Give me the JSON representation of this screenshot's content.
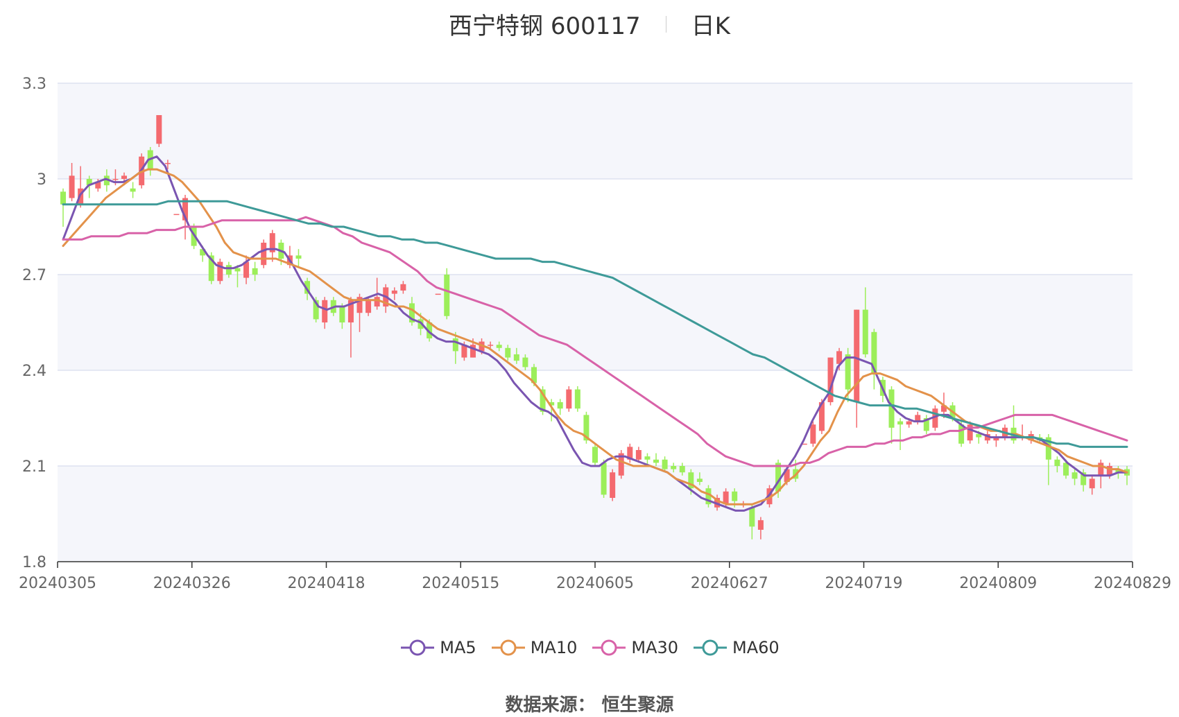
{
  "title": {
    "stock_name": "西宁特钢 600117",
    "period": "日K"
  },
  "source": "数据来源： 恒生聚源",
  "colors": {
    "up": "#f46a6f",
    "down": "#9cee5a",
    "ma5": "#7a55b1",
    "ma10": "#e3924a",
    "ma30": "#d862a8",
    "ma60": "#3e9a98",
    "band": "#f5f6fb",
    "grid": "#dde2f0"
  },
  "chart_data": {
    "type": "candlestick",
    "title": "西宁特钢 600117 日K",
    "y_ticks": [
      "3.3",
      "3",
      "2.7",
      "2.4",
      "2.1",
      "1.8"
    ],
    "ylim": [
      1.8,
      3.3
    ],
    "x_ticks": [
      "20240305",
      "20240326",
      "20240418",
      "20240515",
      "20240605",
      "20240627",
      "20240719",
      "20240809",
      "20240829"
    ],
    "legend": [
      "MA5",
      "MA10",
      "MA30",
      "MA60"
    ],
    "legend_position": "bottom",
    "grid": true,
    "candles": [
      {
        "o": 2.96,
        "c": 2.92,
        "h": 2.97,
        "l": 2.85
      },
      {
        "o": 2.94,
        "c": 3.01,
        "h": 3.05,
        "l": 2.93
      },
      {
        "o": 2.92,
        "c": 2.97,
        "h": 3.04,
        "l": 2.91
      },
      {
        "o": 3.0,
        "c": 2.98,
        "h": 3.01,
        "l": 2.94
      },
      {
        "o": 2.97,
        "c": 2.99,
        "h": 3.0,
        "l": 2.96
      },
      {
        "o": 3.01,
        "c": 2.98,
        "h": 3.03,
        "l": 2.96
      },
      {
        "o": 3.0,
        "c": 3.0,
        "h": 3.03,
        "l": 2.98
      },
      {
        "o": 3.0,
        "c": 3.01,
        "h": 3.02,
        "l": 2.98
      },
      {
        "o": 2.97,
        "c": 2.96,
        "h": 2.99,
        "l": 2.94
      },
      {
        "o": 2.98,
        "c": 3.07,
        "h": 3.08,
        "l": 2.97
      },
      {
        "o": 3.09,
        "c": 3.03,
        "h": 3.1,
        "l": 3.01
      },
      {
        "o": 3.11,
        "c": 3.2,
        "h": 3.2,
        "l": 3.1
      },
      {
        "o": 3.05,
        "c": 3.05,
        "h": 3.06,
        "l": 3.03
      },
      {
        "o": 2.89,
        "c": 2.89,
        "h": 2.89,
        "l": 2.89
      },
      {
        "o": 2.87,
        "c": 2.94,
        "h": 2.95,
        "l": 2.81
      },
      {
        "o": 2.85,
        "c": 2.79,
        "h": 2.86,
        "l": 2.78
      },
      {
        "o": 2.78,
        "c": 2.76,
        "h": 2.79,
        "l": 2.74
      },
      {
        "o": 2.76,
        "c": 2.68,
        "h": 2.77,
        "l": 2.67
      },
      {
        "o": 2.68,
        "c": 2.74,
        "h": 2.75,
        "l": 2.67
      },
      {
        "o": 2.73,
        "c": 2.7,
        "h": 2.74,
        "l": 2.69
      },
      {
        "o": 2.72,
        "c": 2.71,
        "h": 2.73,
        "l": 2.66
      },
      {
        "o": 2.69,
        "c": 2.74,
        "h": 2.76,
        "l": 2.67
      },
      {
        "o": 2.72,
        "c": 2.7,
        "h": 2.74,
        "l": 2.68
      },
      {
        "o": 2.73,
        "c": 2.8,
        "h": 2.81,
        "l": 2.72
      },
      {
        "o": 2.77,
        "c": 2.83,
        "h": 2.84,
        "l": 2.74
      },
      {
        "o": 2.8,
        "c": 2.75,
        "h": 2.81,
        "l": 2.73
      },
      {
        "o": 2.73,
        "c": 2.76,
        "h": 2.79,
        "l": 2.72
      },
      {
        "o": 2.76,
        "c": 2.75,
        "h": 2.78,
        "l": 2.72
      },
      {
        "o": 2.68,
        "c": 2.64,
        "h": 2.69,
        "l": 2.62
      },
      {
        "o": 2.62,
        "c": 2.56,
        "h": 2.63,
        "l": 2.55
      },
      {
        "o": 2.55,
        "c": 2.62,
        "h": 2.63,
        "l": 2.53
      },
      {
        "o": 2.62,
        "c": 2.58,
        "h": 2.63,
        "l": 2.57
      },
      {
        "o": 2.6,
        "c": 2.55,
        "h": 2.61,
        "l": 2.53
      },
      {
        "o": 2.55,
        "c": 2.62,
        "h": 2.63,
        "l": 2.44
      },
      {
        "o": 2.58,
        "c": 2.63,
        "h": 2.64,
        "l": 2.52
      },
      {
        "o": 2.58,
        "c": 2.62,
        "h": 2.63,
        "l": 2.57
      },
      {
        "o": 2.6,
        "c": 2.63,
        "h": 2.69,
        "l": 2.59
      },
      {
        "o": 2.6,
        "c": 2.66,
        "h": 2.67,
        "l": 2.58
      },
      {
        "o": 2.64,
        "c": 2.65,
        "h": 2.66,
        "l": 2.62
      },
      {
        "o": 2.65,
        "c": 2.67,
        "h": 2.68,
        "l": 2.64
      },
      {
        "o": 2.61,
        "c": 2.55,
        "h": 2.63,
        "l": 2.54
      },
      {
        "o": 2.56,
        "c": 2.53,
        "h": 2.58,
        "l": 2.51
      },
      {
        "o": 2.55,
        "c": 2.5,
        "h": 2.56,
        "l": 2.49
      },
      {
        "o": 2.64,
        "c": 2.64,
        "h": 2.64,
        "l": 2.64
      },
      {
        "o": 2.7,
        "c": 2.57,
        "h": 2.72,
        "l": 2.56
      },
      {
        "o": 2.5,
        "c": 2.46,
        "h": 2.52,
        "l": 2.42
      },
      {
        "o": 2.44,
        "c": 2.48,
        "h": 2.49,
        "l": 2.43
      },
      {
        "o": 2.44,
        "c": 2.48,
        "h": 2.5,
        "l": 2.44
      },
      {
        "o": 2.46,
        "c": 2.49,
        "h": 2.5,
        "l": 2.45
      },
      {
        "o": 2.48,
        "c": 2.48,
        "h": 2.49,
        "l": 2.47
      },
      {
        "o": 2.48,
        "c": 2.47,
        "h": 2.49,
        "l": 2.46
      },
      {
        "o": 2.47,
        "c": 2.44,
        "h": 2.48,
        "l": 2.43
      },
      {
        "o": 2.45,
        "c": 2.43,
        "h": 2.47,
        "l": 2.42
      },
      {
        "o": 2.44,
        "c": 2.41,
        "h": 2.45,
        "l": 2.4
      },
      {
        "o": 2.41,
        "c": 2.36,
        "h": 2.42,
        "l": 2.35
      },
      {
        "o": 2.34,
        "c": 2.27,
        "h": 2.35,
        "l": 2.26
      },
      {
        "o": 2.3,
        "c": 2.29,
        "h": 2.31,
        "l": 2.24
      },
      {
        "o": 2.3,
        "c": 2.28,
        "h": 2.31,
        "l": 2.26
      },
      {
        "o": 2.28,
        "c": 2.34,
        "h": 2.35,
        "l": 2.27
      },
      {
        "o": 2.34,
        "c": 2.28,
        "h": 2.35,
        "l": 2.27
      },
      {
        "o": 2.26,
        "c": 2.18,
        "h": 2.27,
        "l": 2.17
      },
      {
        "o": 2.16,
        "c": 2.11,
        "h": 2.17,
        "l": 2.1
      },
      {
        "o": 2.11,
        "c": 2.01,
        "h": 2.12,
        "l": 2.0
      },
      {
        "o": 2.0,
        "c": 2.08,
        "h": 2.09,
        "l": 1.99
      },
      {
        "o": 2.07,
        "c": 2.14,
        "h": 2.15,
        "l": 2.06
      },
      {
        "o": 2.12,
        "c": 2.16,
        "h": 2.17,
        "l": 2.11
      },
      {
        "o": 2.12,
        "c": 2.15,
        "h": 2.16,
        "l": 2.11
      },
      {
        "o": 2.13,
        "c": 2.12,
        "h": 2.14,
        "l": 2.1
      },
      {
        "o": 2.12,
        "c": 2.11,
        "h": 2.14,
        "l": 2.1
      },
      {
        "o": 2.12,
        "c": 2.09,
        "h": 2.13,
        "l": 2.08
      },
      {
        "o": 2.1,
        "c": 2.09,
        "h": 2.11,
        "l": 2.08
      },
      {
        "o": 2.1,
        "c": 2.08,
        "h": 2.11,
        "l": 2.07
      },
      {
        "o": 2.08,
        "c": 2.03,
        "h": 2.09,
        "l": 2.01
      },
      {
        "o": 2.06,
        "c": 2.05,
        "h": 2.08,
        "l": 2.04
      },
      {
        "o": 2.03,
        "c": 1.98,
        "h": 2.04,
        "l": 1.97
      },
      {
        "o": 1.97,
        "c": 2.0,
        "h": 2.01,
        "l": 1.96
      },
      {
        "o": 1.98,
        "c": 2.02,
        "h": 2.03,
        "l": 1.97
      },
      {
        "o": 2.02,
        "c": 1.99,
        "h": 2.03,
        "l": 1.97
      },
      {
        "o": 1.98,
        "c": 1.98,
        "h": 1.99,
        "l": 1.97
      },
      {
        "o": 1.97,
        "c": 1.91,
        "h": 1.98,
        "l": 1.87
      },
      {
        "o": 1.9,
        "c": 1.93,
        "h": 1.94,
        "l": 1.87
      },
      {
        "o": 1.98,
        "c": 2.03,
        "h": 2.04,
        "l": 1.97
      },
      {
        "o": 2.11,
        "c": 2.02,
        "h": 2.12,
        "l": 2.0
      },
      {
        "o": 2.05,
        "c": 2.09,
        "h": 2.1,
        "l": 2.04
      },
      {
        "o": 2.09,
        "c": 2.06,
        "h": 2.12,
        "l": 2.05
      },
      {
        "o": 2.17,
        "c": 2.17,
        "h": 2.17,
        "l": 2.17
      },
      {
        "o": 2.17,
        "c": 2.23,
        "h": 2.24,
        "l": 2.16
      },
      {
        "o": 2.21,
        "c": 2.3,
        "h": 2.31,
        "l": 2.2
      },
      {
        "o": 2.3,
        "c": 2.44,
        "h": 2.44,
        "l": 2.29
      },
      {
        "o": 2.42,
        "c": 2.46,
        "h": 2.47,
        "l": 2.4
      },
      {
        "o": 2.45,
        "c": 2.34,
        "h": 2.47,
        "l": 2.3
      },
      {
        "o": 2.3,
        "c": 2.59,
        "h": 2.59,
        "l": 2.22
      },
      {
        "o": 2.59,
        "c": 2.45,
        "h": 2.66,
        "l": 2.44
      },
      {
        "o": 2.52,
        "c": 2.39,
        "h": 2.53,
        "l": 2.34
      },
      {
        "o": 2.37,
        "c": 2.32,
        "h": 2.38,
        "l": 2.3
      },
      {
        "o": 2.34,
        "c": 2.22,
        "h": 2.35,
        "l": 2.17
      },
      {
        "o": 2.24,
        "c": 2.23,
        "h": 2.25,
        "l": 2.15
      },
      {
        "o": 2.23,
        "c": 2.24,
        "h": 2.25,
        "l": 2.22
      },
      {
        "o": 2.24,
        "c": 2.26,
        "h": 2.27,
        "l": 2.23
      },
      {
        "o": 2.25,
        "c": 2.21,
        "h": 2.26,
        "l": 2.2
      },
      {
        "o": 2.22,
        "c": 2.28,
        "h": 2.29,
        "l": 2.21
      },
      {
        "o": 2.27,
        "c": 2.29,
        "h": 2.33,
        "l": 2.25
      },
      {
        "o": 2.29,
        "c": 2.25,
        "h": 2.3,
        "l": 2.24
      },
      {
        "o": 2.23,
        "c": 2.17,
        "h": 2.24,
        "l": 2.16
      },
      {
        "o": 2.18,
        "c": 2.23,
        "h": 2.24,
        "l": 2.17
      },
      {
        "o": 2.2,
        "c": 2.19,
        "h": 2.21,
        "l": 2.17
      },
      {
        "o": 2.18,
        "c": 2.2,
        "h": 2.21,
        "l": 2.17
      },
      {
        "o": 2.18,
        "c": 2.19,
        "h": 2.2,
        "l": 2.16
      },
      {
        "o": 2.19,
        "c": 2.22,
        "h": 2.23,
        "l": 2.18
      },
      {
        "o": 2.22,
        "c": 2.18,
        "h": 2.29,
        "l": 2.17
      },
      {
        "o": 2.19,
        "c": 2.19,
        "h": 2.23,
        "l": 2.18
      },
      {
        "o": 2.18,
        "c": 2.2,
        "h": 2.21,
        "l": 2.17
      },
      {
        "o": 2.19,
        "c": 2.18,
        "h": 2.2,
        "l": 2.17
      },
      {
        "o": 2.19,
        "c": 2.12,
        "h": 2.2,
        "l": 2.04
      },
      {
        "o": 2.12,
        "c": 2.1,
        "h": 2.13,
        "l": 2.08
      },
      {
        "o": 2.11,
        "c": 2.07,
        "h": 2.12,
        "l": 2.06
      },
      {
        "o": 2.08,
        "c": 2.06,
        "h": 2.09,
        "l": 2.04
      },
      {
        "o": 2.08,
        "c": 2.04,
        "h": 2.09,
        "l": 2.02
      },
      {
        "o": 2.03,
        "c": 2.06,
        "h": 2.07,
        "l": 2.01
      },
      {
        "o": 2.07,
        "c": 2.11,
        "h": 2.12,
        "l": 2.03
      },
      {
        "o": 2.07,
        "c": 2.1,
        "h": 2.11,
        "l": 2.06
      },
      {
        "o": 2.09,
        "c": 2.08,
        "h": 2.1,
        "l": 2.06
      },
      {
        "o": 2.09,
        "c": 2.07,
        "h": 2.1,
        "l": 2.04
      }
    ],
    "series": [
      {
        "name": "MA5",
        "values": [
          2.81,
          2.88,
          2.95,
          2.98,
          2.99,
          3.0,
          2.99,
          2.99,
          3.0,
          3.02,
          3.06,
          3.07,
          3.04,
          2.97,
          2.9,
          2.84,
          2.8,
          2.76,
          2.73,
          2.72,
          2.72,
          2.73,
          2.75,
          2.77,
          2.78,
          2.78,
          2.77,
          2.73,
          2.68,
          2.64,
          2.6,
          2.59,
          2.6,
          2.6,
          2.61,
          2.62,
          2.63,
          2.64,
          2.63,
          2.61,
          2.58,
          2.56,
          2.55,
          2.52,
          2.5,
          2.49,
          2.49,
          2.48,
          2.47,
          2.46,
          2.45,
          2.43,
          2.4,
          2.36,
          2.33,
          2.3,
          2.28,
          2.27,
          2.25,
          2.2,
          2.15,
          2.11,
          2.1,
          2.1,
          2.12,
          2.13,
          2.13,
          2.12,
          2.11,
          2.1,
          2.09,
          2.08,
          2.06,
          2.04,
          2.02,
          2.0,
          1.99,
          1.98,
          1.97,
          1.96,
          1.96,
          1.97,
          1.98,
          2.01,
          2.05,
          2.09,
          2.13,
          2.18,
          2.24,
          2.29,
          2.33,
          2.41,
          2.44,
          2.44,
          2.43,
          2.42,
          2.36,
          2.3,
          2.27,
          2.25,
          2.24,
          2.24,
          2.25,
          2.26,
          2.26,
          2.24,
          2.22,
          2.21,
          2.2,
          2.19,
          2.19,
          2.19,
          2.19,
          2.19,
          2.19,
          2.18,
          2.16,
          2.14,
          2.11,
          2.09,
          2.07,
          2.07,
          2.07,
          2.07,
          2.08,
          2.08
        ]
      },
      {
        "name": "MA10",
        "values": [
          2.79,
          2.82,
          2.85,
          2.88,
          2.91,
          2.94,
          2.96,
          2.98,
          3.0,
          3.02,
          3.03,
          3.03,
          3.02,
          3.01,
          2.99,
          2.96,
          2.93,
          2.89,
          2.85,
          2.8,
          2.77,
          2.76,
          2.75,
          2.75,
          2.75,
          2.75,
          2.74,
          2.73,
          2.72,
          2.71,
          2.69,
          2.67,
          2.65,
          2.63,
          2.62,
          2.62,
          2.62,
          2.62,
          2.61,
          2.6,
          2.6,
          2.59,
          2.57,
          2.55,
          2.53,
          2.52,
          2.51,
          2.5,
          2.49,
          2.48,
          2.47,
          2.45,
          2.43,
          2.41,
          2.39,
          2.37,
          2.34,
          2.3,
          2.26,
          2.23,
          2.21,
          2.2,
          2.18,
          2.16,
          2.14,
          2.12,
          2.11,
          2.1,
          2.1,
          2.1,
          2.09,
          2.08,
          2.06,
          2.05,
          2.04,
          2.02,
          2.01,
          1.99,
          1.98,
          1.98,
          1.98,
          1.98,
          1.99,
          2.0,
          2.02,
          2.05,
          2.07,
          2.1,
          2.14,
          2.18,
          2.21,
          2.27,
          2.32,
          2.35,
          2.38,
          2.39,
          2.39,
          2.38,
          2.37,
          2.35,
          2.34,
          2.33,
          2.32,
          2.3,
          2.28,
          2.26,
          2.24,
          2.23,
          2.22,
          2.21,
          2.21,
          2.2,
          2.2,
          2.19,
          2.18,
          2.17,
          2.16,
          2.15,
          2.13,
          2.12,
          2.11,
          2.1,
          2.1,
          2.09,
          2.09,
          2.08
        ]
      },
      {
        "name": "MA30",
        "values": [
          2.81,
          2.81,
          2.81,
          2.82,
          2.82,
          2.82,
          2.82,
          2.83,
          2.83,
          2.83,
          2.84,
          2.84,
          2.84,
          2.85,
          2.85,
          2.85,
          2.86,
          2.87,
          2.87,
          2.87,
          2.87,
          2.87,
          2.87,
          2.87,
          2.87,
          2.87,
          2.88,
          2.87,
          2.86,
          2.85,
          2.83,
          2.82,
          2.8,
          2.79,
          2.78,
          2.77,
          2.75,
          2.73,
          2.71,
          2.68,
          2.66,
          2.65,
          2.64,
          2.63,
          2.62,
          2.61,
          2.6,
          2.59,
          2.57,
          2.55,
          2.53,
          2.51,
          2.5,
          2.49,
          2.48,
          2.46,
          2.44,
          2.42,
          2.4,
          2.38,
          2.36,
          2.34,
          2.32,
          2.3,
          2.28,
          2.26,
          2.24,
          2.22,
          2.2,
          2.17,
          2.15,
          2.13,
          2.12,
          2.11,
          2.1,
          2.1,
          2.1,
          2.1,
          2.1,
          2.11,
          2.11,
          2.12,
          2.14,
          2.15,
          2.16,
          2.16,
          2.16,
          2.17,
          2.17,
          2.18,
          2.18,
          2.19,
          2.19,
          2.2,
          2.2,
          2.21,
          2.21,
          2.22,
          2.22,
          2.23,
          2.24,
          2.25,
          2.26,
          2.26,
          2.26,
          2.26,
          2.26,
          2.25,
          2.24,
          2.23,
          2.22,
          2.21,
          2.2,
          2.19,
          2.18
        ]
      },
      {
        "name": "MA60",
        "values": [
          2.92,
          2.92,
          2.92,
          2.92,
          2.92,
          2.92,
          2.92,
          2.92,
          2.92,
          2.93,
          2.93,
          2.93,
          2.93,
          2.93,
          2.93,
          2.92,
          2.91,
          2.9,
          2.89,
          2.88,
          2.87,
          2.86,
          2.86,
          2.85,
          2.85,
          2.84,
          2.83,
          2.82,
          2.82,
          2.81,
          2.81,
          2.8,
          2.8,
          2.79,
          2.78,
          2.77,
          2.76,
          2.75,
          2.75,
          2.75,
          2.75,
          2.74,
          2.74,
          2.73,
          2.72,
          2.71,
          2.7,
          2.69,
          2.67,
          2.65,
          2.63,
          2.61,
          2.59,
          2.57,
          2.55,
          2.53,
          2.51,
          2.49,
          2.47,
          2.45,
          2.44,
          2.42,
          2.4,
          2.38,
          2.36,
          2.34,
          2.32,
          2.31,
          2.3,
          2.29,
          2.29,
          2.29,
          2.28,
          2.28,
          2.27,
          2.26,
          2.25,
          2.24,
          2.23,
          2.22,
          2.21,
          2.2,
          2.19,
          2.19,
          2.18,
          2.17,
          2.17,
          2.16,
          2.16,
          2.16,
          2.16,
          2.16
        ]
      }
    ]
  }
}
